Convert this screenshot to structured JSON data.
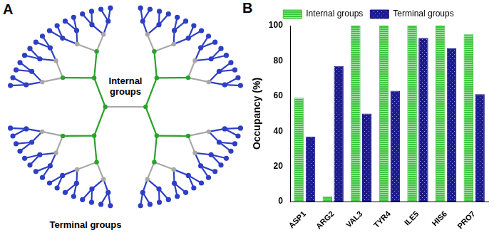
{
  "diagram": {
    "panel": "A",
    "internal_label": "Internal groups",
    "terminal_label": "Terminal groups"
  },
  "chart_data": {
    "panel": "B",
    "type": "bar",
    "y_label": "Occupancy (%)",
    "categories": [
      "ASP1",
      "ARG2",
      "VAL3",
      "TYR4",
      "ILE5",
      "HIS6",
      "PRO7"
    ],
    "series": [
      {
        "name": "Internal groups",
        "color": "#3ec43e",
        "values": [
          59,
          3,
          100,
          100,
          100,
          100,
          95
        ]
      },
      {
        "name": "Terminal groups",
        "color": "#1c1c8f",
        "values": [
          37,
          77,
          50,
          63,
          93,
          87,
          61
        ]
      }
    ],
    "ylim": [
      0,
      100
    ],
    "yticks": [
      0,
      20,
      40,
      60,
      80,
      100
    ],
    "grid": false,
    "legend": "top"
  }
}
